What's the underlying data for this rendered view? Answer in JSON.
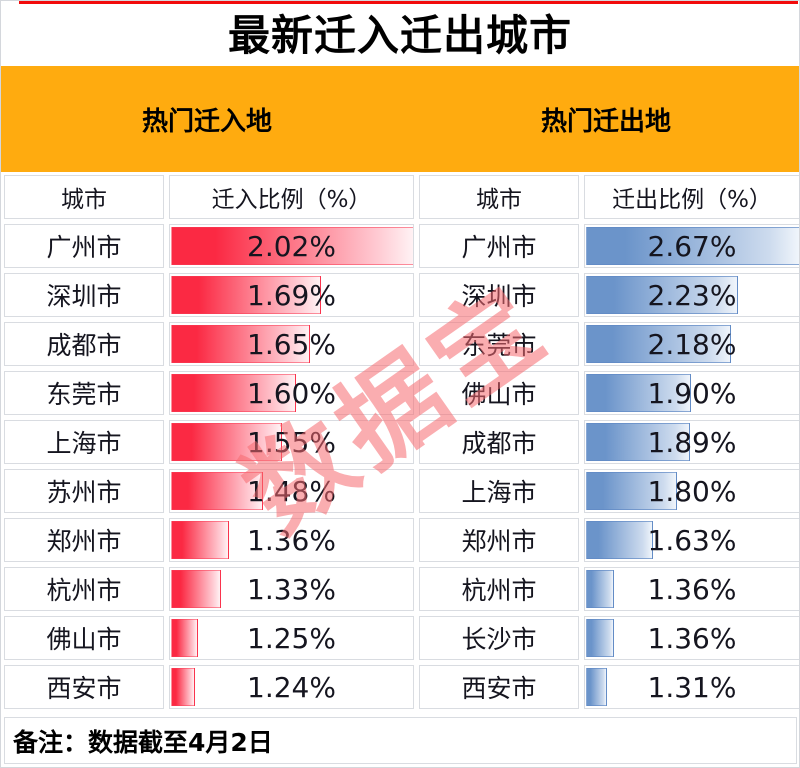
{
  "window": {
    "title": "最新迁入迁出城市",
    "note": "备注：数据截至4月2日",
    "watermark": "数据宝"
  },
  "colors": {
    "banner_bg": "#FFAB0F",
    "top_line": "#F20B0B",
    "in_bar": "#FB2943",
    "out_bar": "#6B94CA",
    "grid_border": "#D9DCE1",
    "watermark": "rgba(246,106,112,0.55)"
  },
  "chart_data": [
    {
      "type": "bar",
      "title": "热门迁入地",
      "city_header": "城市",
      "value_header": "迁入比例（%）",
      "categories": [
        "广州市",
        "深圳市",
        "成都市",
        "东莞市",
        "上海市",
        "苏州市",
        "郑州市",
        "杭州市",
        "佛山市",
        "西安市"
      ],
      "values": [
        2.02,
        1.69,
        1.65,
        1.6,
        1.55,
        1.48,
        1.36,
        1.33,
        1.25,
        1.24
      ],
      "labels": [
        "2.02%",
        "1.69%",
        "1.65%",
        "1.60%",
        "1.55%",
        "1.48%",
        "1.36%",
        "1.33%",
        "1.25%",
        "1.24%"
      ],
      "bar_color": "#FB2943",
      "bar_style": "gradient left-to-right, solid color fading to white",
      "bar_scale": {
        "note": "excel-style data bar: min value -> 10% width, max value -> 100% width",
        "min_width_pct": 10,
        "max_width_pct": 100
      },
      "orientation": "horizontal",
      "grid": false,
      "legend": false
    },
    {
      "type": "bar",
      "title": "热门迁出地",
      "city_header": "城市",
      "value_header": "迁出比例（%）",
      "categories": [
        "广州市",
        "深圳市",
        "东莞市",
        "佛山市",
        "成都市",
        "上海市",
        "郑州市",
        "杭州市",
        "长沙市",
        "西安市"
      ],
      "values": [
        2.67,
        2.23,
        2.18,
        1.9,
        1.89,
        1.8,
        1.63,
        1.36,
        1.36,
        1.31
      ],
      "labels": [
        "2.67%",
        "2.23%",
        "2.18%",
        "1.90%",
        "1.89%",
        "1.80%",
        "1.63%",
        "1.36%",
        "1.36%",
        "1.31%"
      ],
      "bar_color": "#6B94CA",
      "bar_style": "gradient left-to-right, solid color fading to white",
      "bar_scale": {
        "note": "excel-style data bar: min value -> 10% width, max value -> 100% width",
        "min_width_pct": 10,
        "max_width_pct": 100
      },
      "orientation": "horizontal",
      "grid": false,
      "legend": false
    }
  ]
}
